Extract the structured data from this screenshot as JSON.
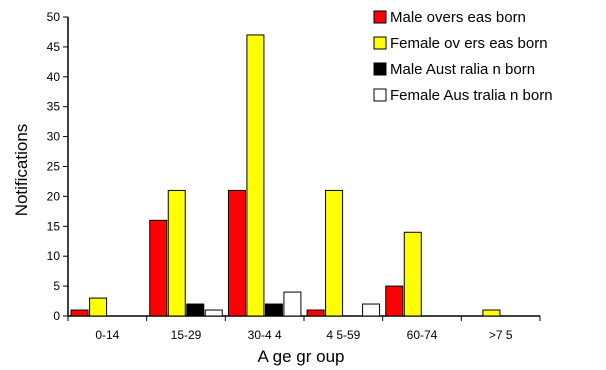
{
  "chart_data": {
    "type": "bar",
    "xlabel": "A ge gr oup",
    "ylabel": "Notifications",
    "ylim": [
      0,
      50
    ],
    "yticks": [
      0,
      5,
      10,
      15,
      20,
      25,
      30,
      35,
      40,
      45,
      50
    ],
    "categories": [
      "0-14",
      "15-29",
      "30-4 4",
      "4 5-59",
      "60-74",
      ">7 5"
    ],
    "series": [
      {
        "name": "Male overs eas born",
        "color": "#ff0000",
        "values": [
          1,
          16,
          21,
          1,
          5,
          0
        ]
      },
      {
        "name": "Female ov ers eas born",
        "color": "#ffff00",
        "values": [
          3,
          21,
          47,
          21,
          14,
          1
        ]
      },
      {
        "name": "Male Aust ralia n born",
        "color": "#000000",
        "values": [
          0,
          2,
          2,
          0,
          0,
          0
        ]
      },
      {
        "name": "Female Aus tralia n born",
        "color": "#ffffff",
        "values": [
          0,
          1,
          4,
          2,
          0,
          0
        ]
      }
    ],
    "legend_position": "top-right",
    "grid": false
  }
}
